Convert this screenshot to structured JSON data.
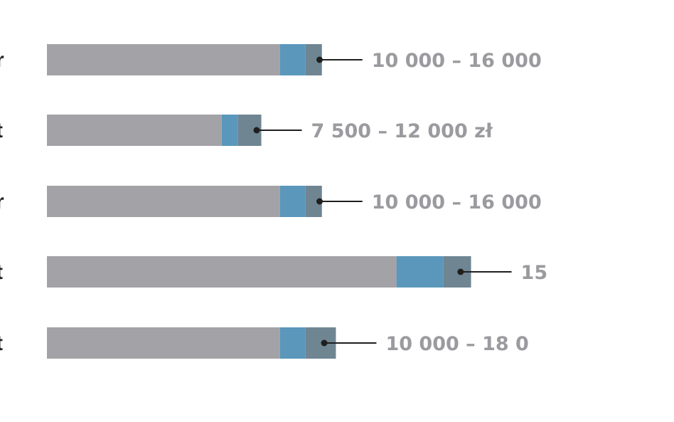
{
  "colors": {
    "base": "#a2a2a7",
    "blue": "#5a97bb",
    "slate": "#6f8592",
    "leader": "#1f1f1f",
    "label": "#9a9a9f",
    "category": "#222222"
  },
  "chart_data": {
    "type": "bar",
    "orientation": "horizontal",
    "stacked": true,
    "categories": [
      "r",
      "t",
      "r",
      "t",
      "t"
    ],
    "series": [
      {
        "values": [
          10000,
          7500,
          10000,
          15000,
          10000
        ]
      },
      {
        "values": [
          1100,
          700,
          1100,
          2000,
          1100
        ]
      },
      {
        "values": [
          700,
          1000,
          700,
          1200,
          1300
        ]
      }
    ],
    "marker_values": [
      11700,
      9000,
      11700,
      17750,
      11900
    ],
    "range_labels": [
      "10 000 – 16 000",
      "7 500 – 12 000 zł",
      "10 000 – 16 000",
      "15",
      "10 000 – 18 0"
    ],
    "xlim": [
      0,
      18000
    ],
    "grid": false,
    "legend": "none"
  }
}
